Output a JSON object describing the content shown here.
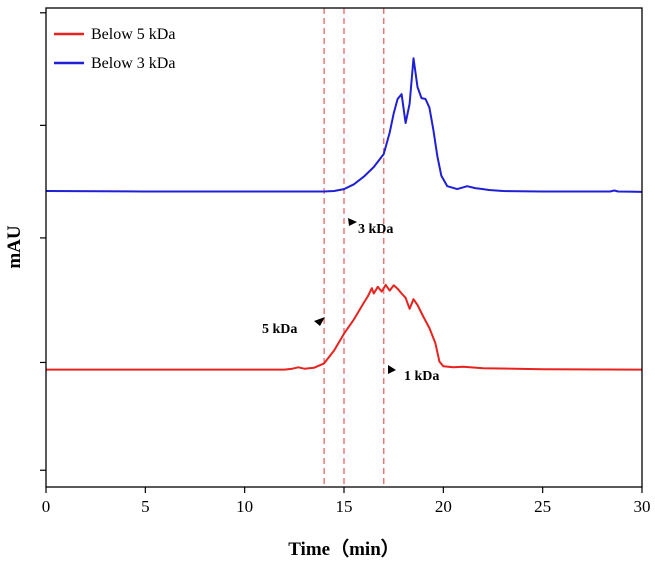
{
  "chart_data": {
    "type": "line",
    "title": "",
    "xlabel": "Time（min）",
    "ylabel": "mAU",
    "xlim": [
      0,
      30
    ],
    "xticks": [
      "0",
      "5",
      "10",
      "15",
      "20",
      "25",
      "30"
    ],
    "ylim": [
      0,
      1
    ],
    "y_tick_labels_shown": false,
    "grid": false,
    "legend_position": "top-left",
    "series": [
      {
        "name": "Below 5 kDa",
        "color": "#e8231f",
        "points": [
          [
            0,
            0.245
          ],
          [
            5,
            0.245
          ],
          [
            10,
            0.245
          ],
          [
            12,
            0.245
          ],
          [
            12.4,
            0.247
          ],
          [
            12.7,
            0.25
          ],
          [
            13.0,
            0.247
          ],
          [
            13.5,
            0.249
          ],
          [
            14.0,
            0.258
          ],
          [
            14.5,
            0.285
          ],
          [
            15.0,
            0.32
          ],
          [
            15.5,
            0.35
          ],
          [
            16.0,
            0.385
          ],
          [
            16.2,
            0.398
          ],
          [
            16.4,
            0.415
          ],
          [
            16.5,
            0.404
          ],
          [
            16.7,
            0.418
          ],
          [
            16.9,
            0.408
          ],
          [
            17.1,
            0.422
          ],
          [
            17.3,
            0.41
          ],
          [
            17.5,
            0.421
          ],
          [
            17.7,
            0.414
          ],
          [
            17.9,
            0.404
          ],
          [
            18.1,
            0.395
          ],
          [
            18.3,
            0.372
          ],
          [
            18.5,
            0.392
          ],
          [
            18.7,
            0.38
          ],
          [
            19.0,
            0.355
          ],
          [
            19.3,
            0.332
          ],
          [
            19.6,
            0.3
          ],
          [
            19.8,
            0.262
          ],
          [
            20.0,
            0.252
          ],
          [
            20.5,
            0.25
          ],
          [
            21.0,
            0.251
          ],
          [
            22.0,
            0.248
          ],
          [
            25.0,
            0.246
          ],
          [
            30.0,
            0.245
          ]
        ]
      },
      {
        "name": "Below 3 kDa",
        "color": "#1f1fd6",
        "points": [
          [
            0,
            0.618
          ],
          [
            5,
            0.617
          ],
          [
            10,
            0.617
          ],
          [
            14.0,
            0.617
          ],
          [
            14.5,
            0.618
          ],
          [
            15.0,
            0.622
          ],
          [
            15.5,
            0.632
          ],
          [
            16.0,
            0.648
          ],
          [
            16.5,
            0.668
          ],
          [
            17.0,
            0.695
          ],
          [
            17.3,
            0.74
          ],
          [
            17.5,
            0.78
          ],
          [
            17.7,
            0.81
          ],
          [
            17.9,
            0.82
          ],
          [
            18.1,
            0.76
          ],
          [
            18.3,
            0.8
          ],
          [
            18.5,
            0.895
          ],
          [
            18.7,
            0.835
          ],
          [
            18.9,
            0.812
          ],
          [
            19.1,
            0.81
          ],
          [
            19.3,
            0.792
          ],
          [
            19.5,
            0.745
          ],
          [
            19.7,
            0.69
          ],
          [
            19.9,
            0.65
          ],
          [
            20.2,
            0.628
          ],
          [
            20.7,
            0.622
          ],
          [
            21.2,
            0.628
          ],
          [
            21.6,
            0.624
          ],
          [
            22.0,
            0.622
          ],
          [
            22.3,
            0.62
          ],
          [
            23.0,
            0.618
          ],
          [
            25.0,
            0.617
          ],
          [
            28.4,
            0.617
          ],
          [
            28.6,
            0.619
          ],
          [
            28.8,
            0.617
          ],
          [
            30.0,
            0.616
          ]
        ]
      }
    ],
    "reference_lines": [
      {
        "x": 14.0,
        "color": "#f07070",
        "style": "dashed"
      },
      {
        "x": 15.0,
        "color": "#f07070",
        "style": "dashed"
      },
      {
        "x": 17.0,
        "color": "#f07070",
        "style": "dashed"
      }
    ],
    "annotations": [
      {
        "text": "3 kDa",
        "x": 15.2,
        "y": 0.57
      },
      {
        "text": "5 kDa",
        "x": 11.2,
        "y": 0.34
      },
      {
        "text": "1 kDa",
        "x": 18.1,
        "y": 0.24
      }
    ]
  }
}
